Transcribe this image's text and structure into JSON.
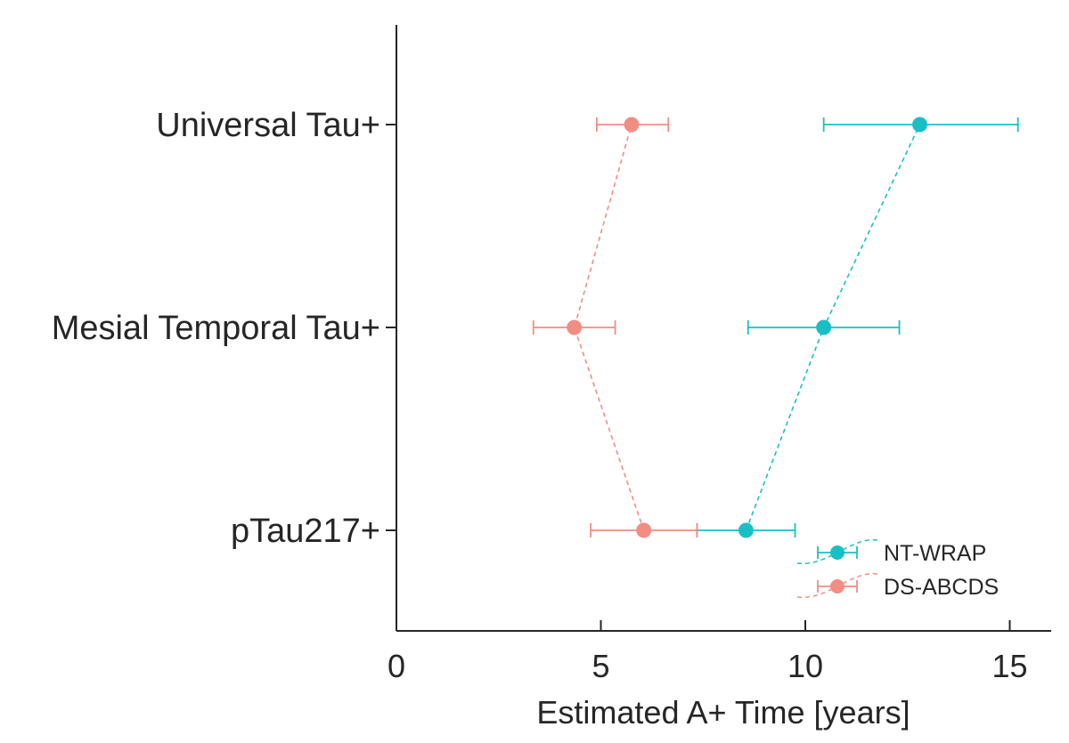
{
  "chart_data": {
    "type": "scatter",
    "xlabel": "Estimated A+ Time [years]",
    "ylabel": "",
    "xlim": [
      0,
      16
    ],
    "xticks": [
      0,
      5,
      10,
      15
    ],
    "xtick_labels": [
      "0",
      "5",
      "10",
      "15"
    ],
    "categories": [
      "pTau217+",
      "Mesial Temporal Tau+",
      "Universal Tau+"
    ],
    "grid": false,
    "legend_position": "bottom-right",
    "series": [
      {
        "name": "NT-WRAP",
        "color": "#1ABFC6",
        "values": [
          8.55,
          10.45,
          12.8
        ],
        "lower": [
          7.35,
          8.6,
          10.45
        ],
        "upper": [
          9.75,
          12.3,
          15.2
        ],
        "connector": "dashed"
      },
      {
        "name": "DS-ABCDS",
        "color": "#F28D83",
        "values": [
          6.05,
          4.35,
          5.75
        ],
        "lower": [
          4.75,
          3.35,
          4.9
        ],
        "upper": [
          7.35,
          5.35,
          6.65
        ],
        "connector": "dashed"
      }
    ]
  }
}
